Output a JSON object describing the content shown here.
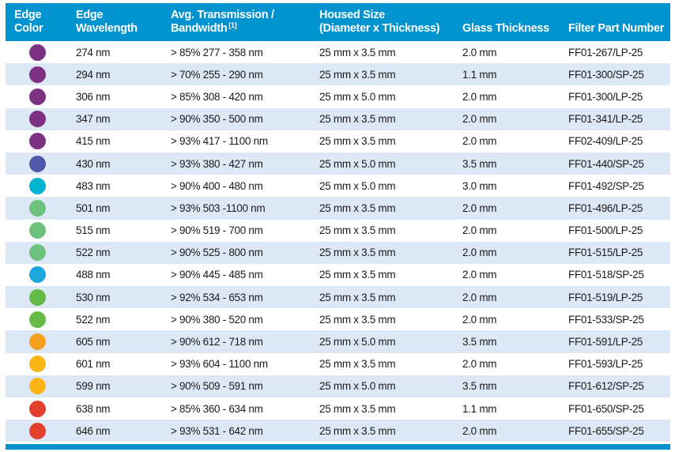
{
  "table": {
    "headers": {
      "edge_color": {
        "line1": "Edge",
        "line2": "Color"
      },
      "edge_wavelength": {
        "line1": "Edge",
        "line2": "Wavelength"
      },
      "avg_transmission": {
        "line1": "Avg. Transmission /",
        "line2": "Bandwidth",
        "superscript": "[1]"
      },
      "housed_size": {
        "line1": "Housed Size",
        "line2": "(Diameter x Thickness)"
      },
      "glass_thickness": {
        "label": "Glass Thickness"
      },
      "filter_part_number": {
        "label": "Filter Part Number"
      }
    },
    "colors": {
      "header_bg": "#0093d0",
      "row_alt_bg": "#dce8f5",
      "body_text": "#1a1a1a",
      "dot_purple": "#7c3182",
      "dot_indigo": "#5157a8",
      "dot_cyan": "#00b3d1",
      "dot_light_green": "#6cc17c",
      "dot_blue_cyan": "#1ba7dc",
      "dot_green": "#65bb46",
      "dot_orange": "#f4a11d",
      "dot_amber": "#fbb515",
      "dot_red": "#e2402c"
    },
    "rows": [
      {
        "edge_color": "purple",
        "dot_hex": "#7c3182",
        "wavelength": "274 nm",
        "transmission": "> 85% 277 - 358 nm",
        "housed_size": "25 mm x 3.5 mm",
        "glass_thickness": "2.0 mm",
        "part_number": "FF01-267/LP-25"
      },
      {
        "edge_color": "purple",
        "dot_hex": "#7c3182",
        "wavelength": "294 nm",
        "transmission": "> 70% 255 - 290 nm",
        "housed_size": "25 mm x 3.5 mm",
        "glass_thickness": "1.1 mm",
        "part_number": "FF01-300/SP-25"
      },
      {
        "edge_color": "purple",
        "dot_hex": "#7c3182",
        "wavelength": "306 nm",
        "transmission": "> 85% 308 - 420 nm",
        "housed_size": "25 mm x 5.0 mm",
        "glass_thickness": "2.0 mm",
        "part_number": "FF01-300/LP-25"
      },
      {
        "edge_color": "purple",
        "dot_hex": "#7c3182",
        "wavelength": "347 nm",
        "transmission": "> 90% 350 - 500 nm",
        "housed_size": "25 mm x 3.5 mm",
        "glass_thickness": "2.0 mm",
        "part_number": "FF01-341/LP-25"
      },
      {
        "edge_color": "purple",
        "dot_hex": "#7c3182",
        "wavelength": "415 nm",
        "transmission": "> 93% 417 - 1100 nm",
        "housed_size": "25 mm x 3.5 mm",
        "glass_thickness": "2.0 mm",
        "part_number": "FF02-409/LP-25"
      },
      {
        "edge_color": "indigo",
        "dot_hex": "#5157a8",
        "wavelength": "430 nm",
        "transmission": "> 93% 380 - 427 nm",
        "housed_size": "25 mm x 5.0 mm",
        "glass_thickness": "3.5 mm",
        "part_number": "FF01-440/SP-25"
      },
      {
        "edge_color": "cyan",
        "dot_hex": "#00b3d1",
        "wavelength": "483 nm",
        "transmission": "> 90% 400 - 480 nm",
        "housed_size": "25 mm x 5.0 mm",
        "glass_thickness": "3.0 mm",
        "part_number": "FF01-492/SP-25"
      },
      {
        "edge_color": "light-green",
        "dot_hex": "#6cc17c",
        "wavelength": "501 nm",
        "transmission": "> 93% 503 -1100 nm",
        "housed_size": "25 mm x 3.5 mm",
        "glass_thickness": "2.0 mm",
        "part_number": "FF01-496/LP-25"
      },
      {
        "edge_color": "light-green",
        "dot_hex": "#6cc17c",
        "wavelength": "515 nm",
        "transmission": "> 90% 519 - 700 nm",
        "housed_size": "25 mm x 3.5 mm",
        "glass_thickness": "2.0 mm",
        "part_number": "FF01-500/LP-25"
      },
      {
        "edge_color": "light-green",
        "dot_hex": "#6cc17c",
        "wavelength": "522 nm",
        "transmission": "> 90% 525 - 800 nm",
        "housed_size": "25 mm x 3.5 mm",
        "glass_thickness": "2.0 mm",
        "part_number": "FF01-515/LP-25"
      },
      {
        "edge_color": "blue-cyan",
        "dot_hex": "#1ba7dc",
        "wavelength": "488 nm",
        "transmission": "> 90% 445 - 485 nm",
        "housed_size": "25 mm x 3.5 mm",
        "glass_thickness": "2.0 mm",
        "part_number": "FF01-518/SP-25"
      },
      {
        "edge_color": "green",
        "dot_hex": "#65bb46",
        "wavelength": "530 nm",
        "transmission": "> 92% 534 - 653 nm",
        "housed_size": "25 mm x 3.5 mm",
        "glass_thickness": "2.0 mm",
        "part_number": "FF01-519/LP-25"
      },
      {
        "edge_color": "green",
        "dot_hex": "#65bb46",
        "wavelength": "522 nm",
        "transmission": "> 90% 380 - 520 nm",
        "housed_size": "25 mm x 3.5 mm",
        "glass_thickness": "2.0 mm",
        "part_number": "FF01-533/SP-25"
      },
      {
        "edge_color": "orange",
        "dot_hex": "#f4a11d",
        "wavelength": "605 nm",
        "transmission": "> 90% 612 - 718 nm",
        "housed_size": "25 mm x 5.0 mm",
        "glass_thickness": "3.5 mm",
        "part_number": "FF01-591/LP-25"
      },
      {
        "edge_color": "amber",
        "dot_hex": "#fbb515",
        "wavelength": "601 nm",
        "transmission": "> 93% 604 - 1100 nm",
        "housed_size": "25 mm x 3.5 mm",
        "glass_thickness": "2.0 mm",
        "part_number": "FF01-593/LP-25"
      },
      {
        "edge_color": "amber",
        "dot_hex": "#fbb515",
        "wavelength": "599 nm",
        "transmission": "> 90% 509 - 591 nm",
        "housed_size": "25 mm x 5.0 mm",
        "glass_thickness": "3.5 mm",
        "part_number": "FF01-612/SP-25"
      },
      {
        "edge_color": "red",
        "dot_hex": "#e2402c",
        "wavelength": "638 nm",
        "transmission": "> 85% 360 - 634 nm",
        "housed_size": "25 mm x 3.5 mm",
        "glass_thickness": "1.1 mm",
        "part_number": "FF01-650/SP-25"
      },
      {
        "edge_color": "red",
        "dot_hex": "#e2402c",
        "wavelength": "646 nm",
        "transmission": "> 93% 531 - 642 nm",
        "housed_size": "25 mm x 3.5 mm",
        "glass_thickness": "2.0 mm",
        "part_number": "FF01-655/SP-25"
      }
    ]
  }
}
